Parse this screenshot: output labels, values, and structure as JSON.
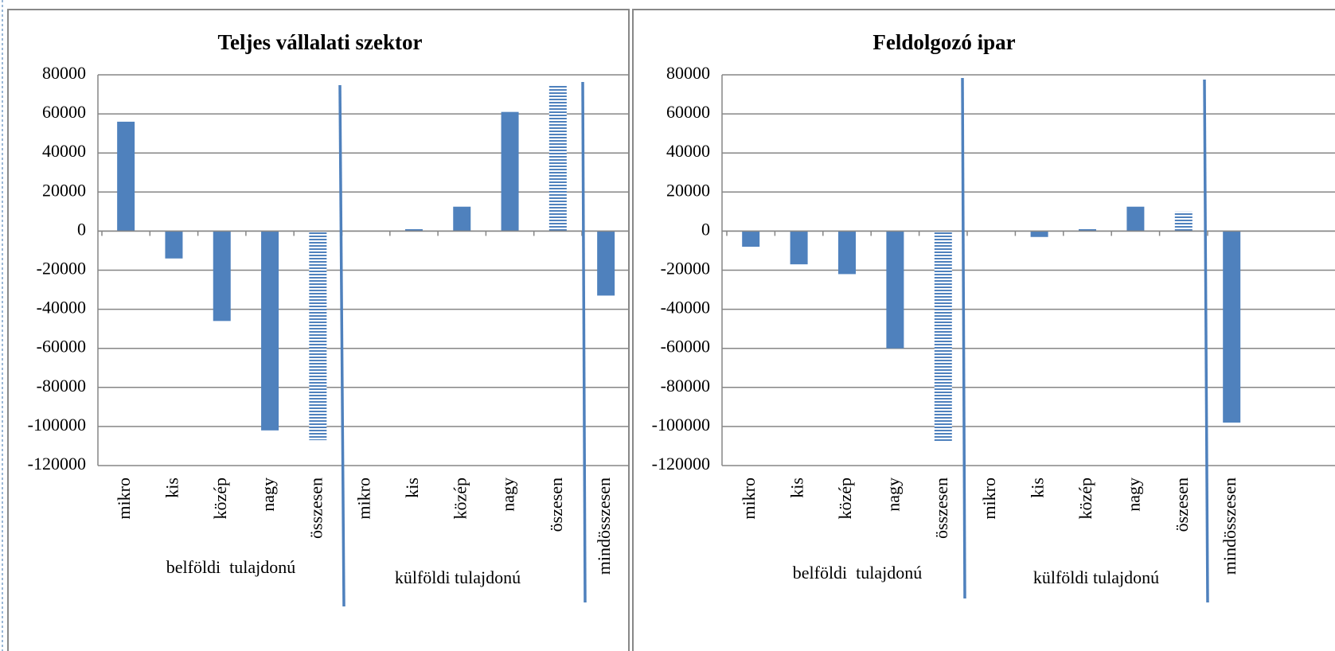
{
  "chart_data": [
    {
      "type": "bar",
      "title": "Teljes vállalati szektor",
      "categories": [
        "mikro",
        "kis",
        "közép",
        "nagy",
        "összesen",
        "mikro",
        "kis",
        "közép",
        "nagy",
        "öszesen",
        "mindösszesen"
      ],
      "values": [
        56000,
        -14000,
        -46000,
        -102000,
        -107000,
        0,
        1000,
        12500,
        61000,
        75000,
        -33000
      ],
      "hatched": [
        false,
        false,
        false,
        false,
        true,
        false,
        false,
        false,
        false,
        true,
        false
      ],
      "groups": [
        "belföldi  tulajdonú",
        "külföldi tulajdonú"
      ],
      "color": "#4f81bd",
      "ylim": [
        -120000,
        80000
      ],
      "yticks": [
        -120000,
        -100000,
        -80000,
        -60000,
        -40000,
        -20000,
        0,
        20000,
        40000,
        60000,
        80000
      ],
      "grid": true
    },
    {
      "type": "bar",
      "title": "Feldolgozó ipar",
      "categories": [
        "mikro",
        "kis",
        "közép",
        "nagy",
        "összesen",
        "mikro",
        "kis",
        "közép",
        "nagy",
        "öszesen",
        "mindösszesen"
      ],
      "values": [
        -8000,
        -17000,
        -22000,
        -60000,
        -108000,
        0,
        -3000,
        1000,
        12500,
        10000,
        -98000
      ],
      "hatched": [
        false,
        false,
        false,
        false,
        true,
        false,
        false,
        false,
        false,
        true,
        false
      ],
      "groups": [
        "belföldi  tulajdonú",
        "külföldi tulajdonú"
      ],
      "color": "#4f81bd",
      "ylim": [
        -120000,
        80000
      ],
      "yticks": [
        -120000,
        -100000,
        -80000,
        -60000,
        -40000,
        -20000,
        0,
        20000,
        40000,
        60000,
        80000
      ],
      "grid": true
    }
  ]
}
